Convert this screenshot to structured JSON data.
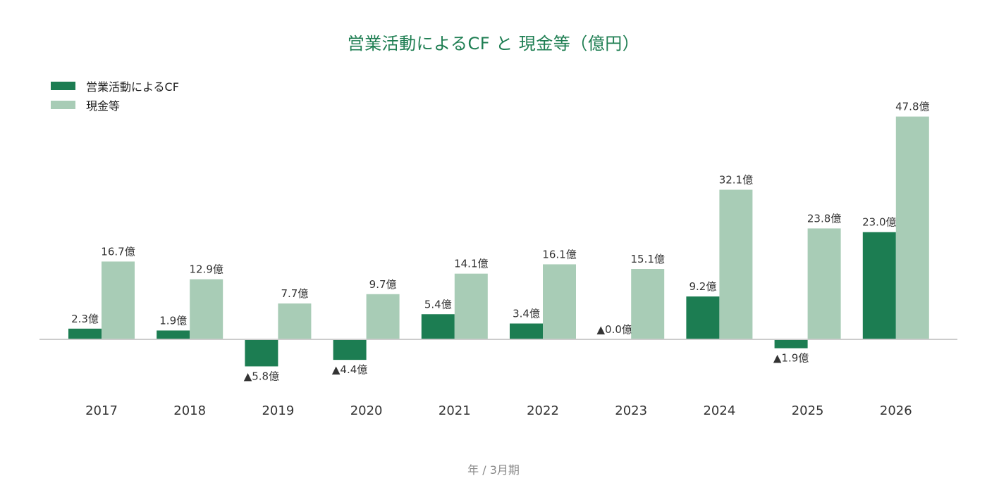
{
  "colors": {
    "cf": "#1c7d52",
    "cash": "#a8ccb6",
    "title": "#1e7e52",
    "axis": "#cccccc"
  },
  "chart_data": {
    "type": "bar",
    "title": "営業活動によるCF と 現金等（億円）",
    "xlabel": "年 / 3月期",
    "ylabel": "",
    "categories": [
      "2017",
      "2018",
      "2019",
      "2020",
      "2021",
      "2022",
      "2023",
      "2024",
      "2025",
      "2026"
    ],
    "series": [
      {
        "name": "営業活動によるCF",
        "values": [
          2.3,
          1.9,
          -5.8,
          -4.4,
          5.4,
          3.4,
          -0.0,
          9.2,
          -1.9,
          23.0
        ],
        "labels": [
          "2.3億",
          "1.9億",
          "▲5.8億",
          "▲4.4億",
          "5.4億",
          "3.4億",
          "▲0.0億",
          "9.2億",
          "▲1.9億",
          "23.0億"
        ]
      },
      {
        "name": "現金等",
        "values": [
          16.7,
          12.9,
          7.7,
          9.7,
          14.1,
          16.1,
          15.1,
          32.1,
          23.8,
          47.8
        ],
        "labels": [
          "16.7億",
          "12.9億",
          "7.7億",
          "9.7億",
          "14.1億",
          "16.1億",
          "15.1億",
          "32.1億",
          "23.8億",
          "47.8億"
        ]
      }
    ],
    "legend_position": "top-left",
    "grid": false
  }
}
